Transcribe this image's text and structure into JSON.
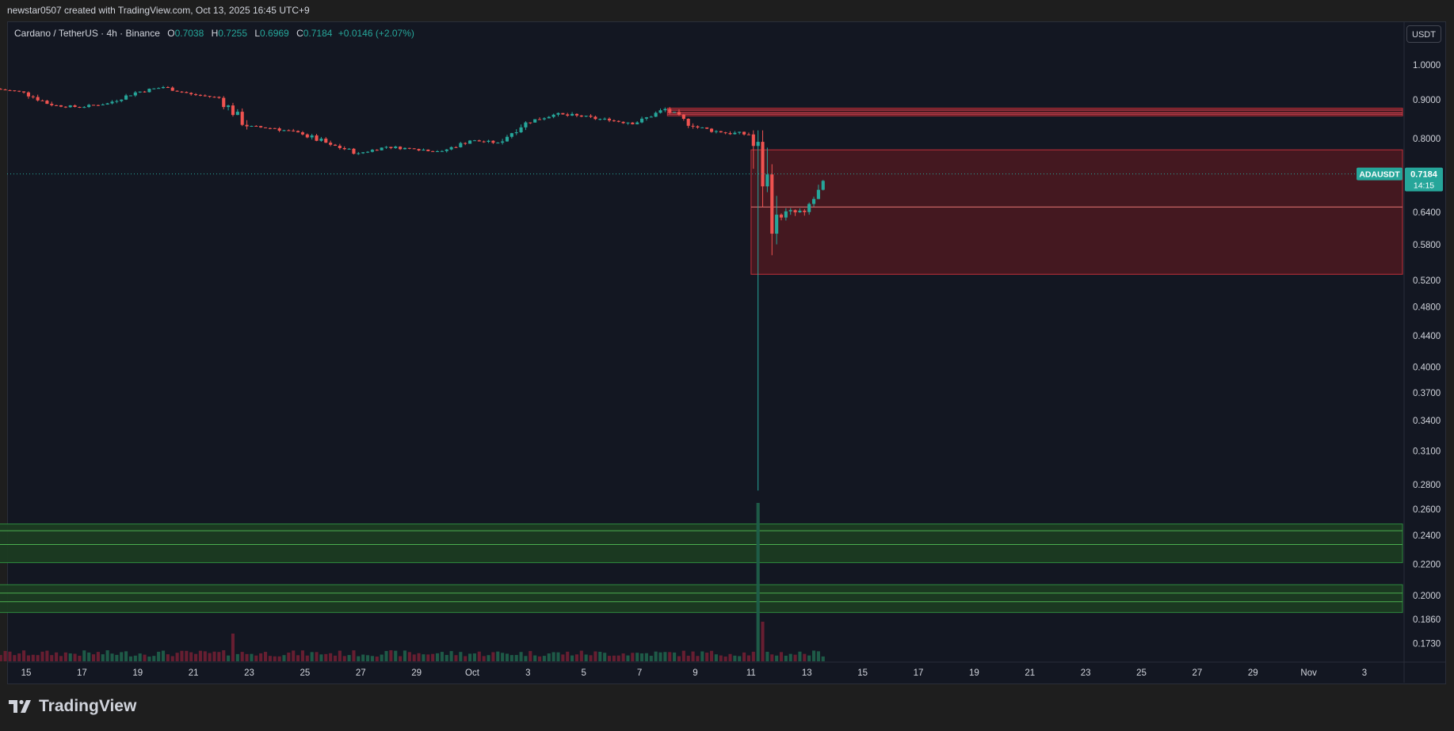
{
  "header": {
    "attribution": "newstar0507 created with TradingView.com, Oct 13, 2025 16:45 UTC+9"
  },
  "legend": {
    "pair": "Cardano / TetherUS · 4h · Binance",
    "o_label": "O",
    "o_value": "0.7038",
    "h_label": "H",
    "h_value": "0.7255",
    "l_label": "L",
    "l_value": "0.6969",
    "c_label": "C",
    "c_value": "0.7184",
    "change": "+0.0146 (+2.07%)"
  },
  "price_axis": {
    "unit": "USDT",
    "ticks": [
      "1.0000",
      "0.9000",
      "0.8000",
      "0.6400",
      "0.5800",
      "0.5200",
      "0.4800",
      "0.4400",
      "0.4000",
      "0.3700",
      "0.3400",
      "0.3100",
      "0.2800",
      "0.2600",
      "0.2400",
      "0.2200",
      "0.2000",
      "0.1860",
      "0.1730"
    ],
    "current_symbol": "ADAUSDT",
    "current_price": "0.7184",
    "countdown": "14:15"
  },
  "time_axis": {
    "labels": [
      "15",
      "17",
      "19",
      "21",
      "23",
      "25",
      "27",
      "29",
      "Oct",
      "3",
      "5",
      "7",
      "9",
      "11",
      "13",
      "15",
      "17",
      "19",
      "21",
      "23",
      "25",
      "27",
      "29",
      "Nov",
      "3"
    ]
  },
  "footer": {
    "brand": "TradingView"
  },
  "colors": {
    "up": "#26a69a",
    "down": "#ef5350",
    "resistance_zone": "#4a1820",
    "support_zone": "#1b3b22",
    "background": "#131722"
  },
  "chart_data": {
    "type": "candlestick",
    "title": "Cardano / TetherUS · 4h · Binance",
    "y_scale": "log",
    "ylim": [
      0.165,
      1.08
    ],
    "x_range_days": [
      "Sep 14",
      "Nov 3"
    ],
    "candles_daily_approx": [
      {
        "date": "Sep 14",
        "o": 0.93,
        "h": 0.94,
        "c": 0.92,
        "l": 0.91
      },
      {
        "date": "Sep 15",
        "o": 0.92,
        "h": 0.93,
        "c": 0.885,
        "l": 0.875
      },
      {
        "date": "Sep 16",
        "o": 0.885,
        "h": 0.895,
        "c": 0.88,
        "l": 0.87
      },
      {
        "date": "Sep 17",
        "o": 0.88,
        "h": 0.9,
        "c": 0.89,
        "l": 0.875
      },
      {
        "date": "Sep 18",
        "o": 0.89,
        "h": 0.925,
        "c": 0.92,
        "l": 0.885
      },
      {
        "date": "Sep 19",
        "o": 0.92,
        "h": 0.95,
        "c": 0.935,
        "l": 0.91
      },
      {
        "date": "Sep 20",
        "o": 0.935,
        "h": 0.94,
        "c": 0.915,
        "l": 0.905
      },
      {
        "date": "Sep 21",
        "o": 0.915,
        "h": 0.92,
        "c": 0.905,
        "l": 0.895
      },
      {
        "date": "Sep 22",
        "o": 0.905,
        "h": 0.91,
        "c": 0.83,
        "l": 0.8
      },
      {
        "date": "Sep 23",
        "o": 0.83,
        "h": 0.84,
        "c": 0.825,
        "l": 0.815
      },
      {
        "date": "Sep 24",
        "o": 0.825,
        "h": 0.835,
        "c": 0.81,
        "l": 0.8
      },
      {
        "date": "Sep 25",
        "o": 0.81,
        "h": 0.83,
        "c": 0.785,
        "l": 0.775
      },
      {
        "date": "Sep 26",
        "o": 0.785,
        "h": 0.79,
        "c": 0.765,
        "l": 0.75
      },
      {
        "date": "Sep 27",
        "o": 0.765,
        "h": 0.785,
        "c": 0.78,
        "l": 0.76
      },
      {
        "date": "Sep 28",
        "o": 0.78,
        "h": 0.79,
        "c": 0.775,
        "l": 0.765
      },
      {
        "date": "Sep 29",
        "o": 0.775,
        "h": 0.785,
        "c": 0.77,
        "l": 0.76
      },
      {
        "date": "Sep 30",
        "o": 0.77,
        "h": 0.8,
        "c": 0.795,
        "l": 0.765
      },
      {
        "date": "Oct 1",
        "o": 0.795,
        "h": 0.805,
        "c": 0.79,
        "l": 0.78
      },
      {
        "date": "Oct 2",
        "o": 0.79,
        "h": 0.85,
        "c": 0.84,
        "l": 0.785
      },
      {
        "date": "Oct 3",
        "o": 0.84,
        "h": 0.875,
        "c": 0.86,
        "l": 0.835
      },
      {
        "date": "Oct 4",
        "o": 0.86,
        "h": 0.89,
        "c": 0.855,
        "l": 0.845
      },
      {
        "date": "Oct 5",
        "o": 0.855,
        "h": 0.87,
        "c": 0.845,
        "l": 0.835
      },
      {
        "date": "Oct 6",
        "o": 0.845,
        "h": 0.88,
        "c": 0.84,
        "l": 0.83
      },
      {
        "date": "Oct 7",
        "o": 0.84,
        "h": 0.88,
        "c": 0.875,
        "l": 0.835
      },
      {
        "date": "Oct 8",
        "o": 0.875,
        "h": 0.88,
        "c": 0.83,
        "l": 0.82
      },
      {
        "date": "Oct 9",
        "o": 0.83,
        "h": 0.845,
        "c": 0.815,
        "l": 0.805
      },
      {
        "date": "Oct 10",
        "o": 0.815,
        "h": 0.83,
        "c": 0.81,
        "l": 0.79
      },
      {
        "date": "Oct 11",
        "o": 0.81,
        "h": 0.82,
        "c": 0.635,
        "l": 0.275
      },
      {
        "date": "Oct 12",
        "o": 0.635,
        "h": 0.68,
        "c": 0.64,
        "l": 0.61
      },
      {
        "date": "Oct 13",
        "o": 0.64,
        "h": 0.7255,
        "c": 0.7184,
        "l": 0.63
      }
    ],
    "zones": [
      {
        "kind": "resistance",
        "from_date": "Oct 8",
        "to_price": 0.877,
        "from_price": 0.857
      },
      {
        "kind": "resistance",
        "from_date": "Oct 11",
        "to_price": 0.773,
        "from_price": 0.53,
        "midline": 0.65
      },
      {
        "kind": "support",
        "from_date": "Sep 14",
        "to_price": 0.2485,
        "from_price": 0.221,
        "lines": [
          0.2435,
          0.2335
        ]
      },
      {
        "kind": "support",
        "from_date": "Sep 14",
        "to_price": 0.2067,
        "from_price": 0.19,
        "lines": [
          0.2015,
          0.1963
        ]
      }
    ],
    "volume": "bars at bottom, spike on Oct 11"
  }
}
